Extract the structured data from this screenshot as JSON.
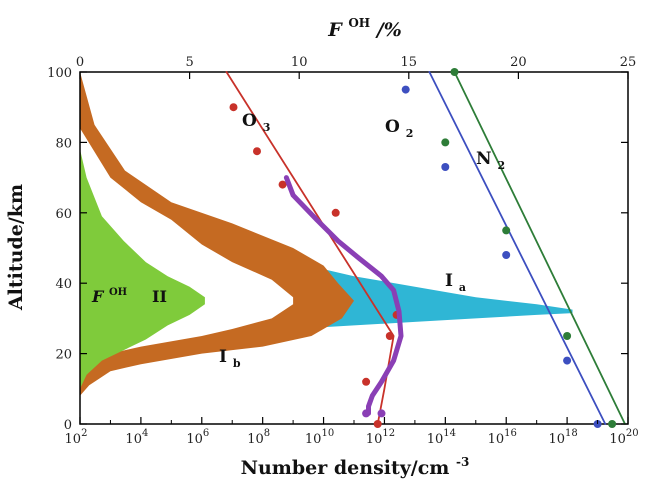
{
  "chart_data": {
    "type": "line",
    "x_bottom": {
      "label": "Number density/cm",
      "label_sup": "-3",
      "scale": "log",
      "range": [
        100.0,
        1e+20
      ],
      "ticks": [
        {
          "base": "10",
          "exp": "2",
          "value": 100.0
        },
        {
          "base": "10",
          "exp": "4",
          "value": 10000.0
        },
        {
          "base": "10",
          "exp": "6",
          "value": 1000000.0
        },
        {
          "base": "10",
          "exp": "8",
          "value": 100000000.0
        },
        {
          "base": "10",
          "exp": "10",
          "value": 10000000000.0
        },
        {
          "base": "10",
          "exp": "12",
          "value": 1000000000000.0
        },
        {
          "base": "10",
          "exp": "14",
          "value": 100000000000000.0
        },
        {
          "base": "10",
          "exp": "16",
          "value": 1e+16
        },
        {
          "base": "10",
          "exp": "18",
          "value": 1e+18
        },
        {
          "base": "10",
          "exp": "20",
          "value": 1e+20
        }
      ]
    },
    "x_top": {
      "label_main": "F",
      "label_sup": "OH",
      "label_unit": "/%",
      "scale": "linear",
      "range": [
        0,
        25
      ],
      "ticks": [
        "0",
        "5",
        "10",
        "15",
        "20",
        "25"
      ]
    },
    "y": {
      "label": "Altitude/km",
      "range": [
        0,
        100
      ],
      "ticks": [
        "0",
        "20",
        "40",
        "60",
        "80",
        "100"
      ]
    },
    "annotations": {
      "o3": {
        "main": "O",
        "sub": "3"
      },
      "o2": {
        "main": "O",
        "sub": "2"
      },
      "n2": {
        "main": "N",
        "sub": "2"
      },
      "ia": {
        "main": "I",
        "sub": "a"
      },
      "ib": {
        "main": "I",
        "sub": "b"
      },
      "ii": "II",
      "foh": {
        "main": "F",
        "sup": "OH"
      }
    },
    "series": [
      {
        "key": "O3",
        "kind": "line",
        "axis": "density",
        "color": "#c8322a",
        "line": [
          [
            6500000.0,
            100
          ],
          [
            2000000000000.0,
            25
          ],
          [
            1000000000000.0,
            10
          ],
          [
            600000000000.0,
            0
          ]
        ],
        "points": [
          [
            11000000.0,
            90
          ],
          [
            65000000.0,
            77.5
          ],
          [
            450000000.0,
            68
          ],
          [
            25000000000.0,
            60
          ],
          [
            2500000000000.0,
            31
          ],
          [
            1500000000000.0,
            25
          ],
          [
            250000000000.0,
            12
          ],
          [
            600000000000.0,
            0
          ]
        ]
      },
      {
        "key": "O2",
        "kind": "line",
        "axis": "density",
        "color": "#3d4fc0",
        "line": [
          [
            30000000000000.0,
            100
          ],
          [
            1.8e+19,
            0
          ]
        ],
        "points": [
          [
            5000000000000.0,
            95
          ],
          [
            100000000000000.0,
            73
          ],
          [
            1e+16,
            48
          ],
          [
            1e+18,
            18
          ],
          [
            1e+19,
            0
          ]
        ]
      },
      {
        "key": "N2",
        "kind": "line",
        "axis": "density",
        "color": "#2e7d38",
        "line": [
          [
            200000000000000.0,
            100
          ],
          [
            8e+19,
            0
          ]
        ],
        "points": [
          [
            200000000000000.0,
            100
          ],
          [
            100000000000000.0,
            80
          ],
          [
            1e+16,
            55
          ],
          [
            1e+18,
            25
          ],
          [
            3e+19,
            0
          ]
        ]
      },
      {
        "key": "purple",
        "kind": "line",
        "axis": "density",
        "color": "#8a3fb5",
        "line": [
          [
            600000000.0,
            70
          ],
          [
            1000000000.0,
            65
          ],
          [
            6000000000.0,
            58
          ],
          [
            30000000000.0,
            52
          ],
          [
            150000000000.0,
            47
          ],
          [
            800000000000.0,
            42
          ],
          [
            2000000000000.0,
            38
          ],
          [
            3000000000000.0,
            32
          ],
          [
            3500000000000.0,
            25
          ],
          [
            2000000000000.0,
            18
          ],
          [
            800000000000.0,
            12
          ],
          [
            400000000000.0,
            8
          ],
          [
            300000000000.0,
            5
          ],
          [
            300000000000.0,
            3
          ]
        ],
        "points": [
          [
            250000000000.0,
            3
          ],
          [
            800000000000.0,
            3
          ]
        ]
      },
      {
        "key": "Ia",
        "kind": "band",
        "axis": "density",
        "color": "#2fb6d5",
        "upper": [
          [
            100.0,
            75
          ],
          [
            1000.0,
            65
          ],
          [
            100000.0,
            57
          ],
          [
            10000000.0,
            51
          ],
          [
            1000000000.0,
            46
          ],
          [
            100000000000.0,
            42
          ],
          [
            10000000000000.0,
            39
          ],
          [
            1000000000000000.0,
            36
          ],
          [
            1e+17,
            34
          ],
          [
            1.5e+18,
            32.5
          ]
        ],
        "lower": [
          [
            1.5e+18,
            31.5
          ],
          [
            1e+17,
            31
          ],
          [
            1000000000000000.0,
            30
          ],
          [
            10000000000000.0,
            29
          ],
          [
            100000000000.0,
            28
          ],
          [
            1000000000.0,
            27
          ],
          [
            10000000.0,
            26
          ],
          [
            100000.0,
            25
          ],
          [
            1000.0,
            22
          ],
          [
            100.0,
            19
          ]
        ]
      },
      {
        "key": "Ib",
        "kind": "band",
        "axis": "density",
        "color": "#c56a22",
        "upper": [
          [
            100.0,
            100
          ],
          [
            300.0,
            85
          ],
          [
            3000.0,
            72
          ],
          [
            100000.0,
            63
          ],
          [
            10000000.0,
            57
          ],
          [
            1000000000.0,
            50
          ],
          [
            10000000000.0,
            45
          ],
          [
            30000000000.0,
            40
          ],
          [
            100000000000.0,
            35
          ]
        ],
        "lower": [
          [
            100000000000.0,
            35
          ],
          [
            40000000000.0,
            30
          ],
          [
            4000000000.0,
            25
          ],
          [
            100000000.0,
            22
          ],
          [
            1000000.0,
            20
          ],
          [
            10000.0,
            17
          ],
          [
            1000.0,
            15
          ],
          [
            200.0,
            11
          ],
          [
            100.0,
            8
          ]
        ]
      },
      {
        "key": "Ib_inner",
        "kind": "band",
        "axis": "density",
        "color": "#ffffff",
        "upper": [
          [
            100.0,
            84
          ],
          [
            1000.0,
            70
          ],
          [
            10000.0,
            63
          ],
          [
            100000.0,
            58
          ],
          [
            1000000.0,
            51
          ],
          [
            10000000.0,
            46
          ],
          [
            200000000.0,
            41
          ],
          [
            1000000000.0,
            36
          ]
        ],
        "lower": [
          [
            1000000000.0,
            34
          ],
          [
            200000000.0,
            30
          ],
          [
            10000000.0,
            27
          ],
          [
            1000000.0,
            25
          ],
          [
            10000.0,
            22
          ],
          [
            1000.0,
            20
          ],
          [
            100.0,
            18
          ]
        ]
      },
      {
        "key": "FOH",
        "kind": "band",
        "axis": "percent",
        "color": "#7fcb3b",
        "upper": [
          [
            0,
            78
          ],
          [
            0.3,
            70
          ],
          [
            1,
            59
          ],
          [
            2,
            52
          ],
          [
            3,
            46
          ],
          [
            4,
            42
          ],
          [
            5,
            39
          ],
          [
            5.7,
            36
          ]
        ],
        "lower": [
          [
            5.7,
            34
          ],
          [
            5,
            31
          ],
          [
            4,
            28
          ],
          [
            3,
            24
          ],
          [
            2,
            21
          ],
          [
            1,
            18
          ],
          [
            0.3,
            14
          ],
          [
            0,
            10
          ]
        ]
      }
    ]
  }
}
